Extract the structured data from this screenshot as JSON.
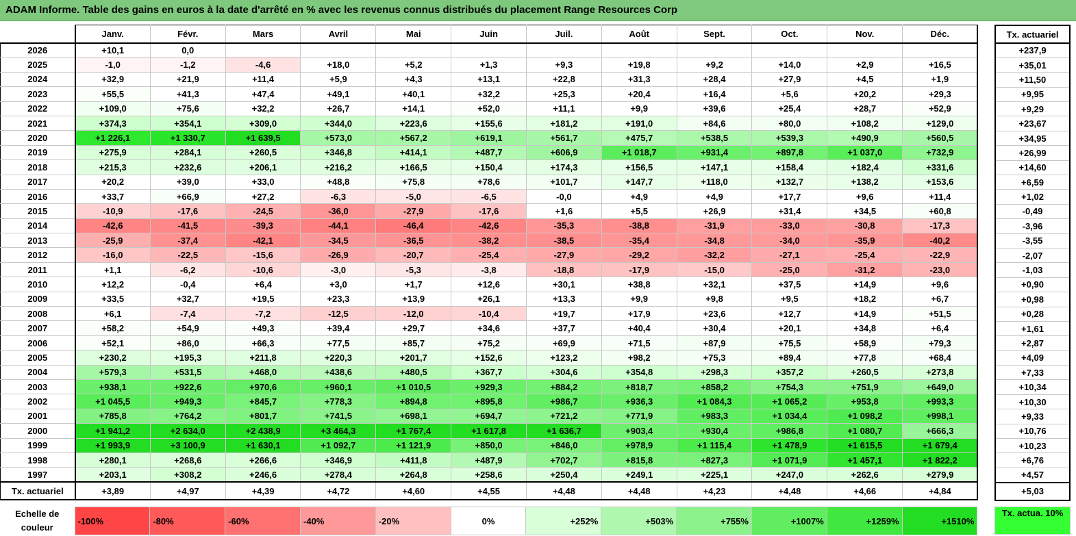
{
  "title": "ADAM Informe. Table des gains en euros à la date d'arrêté en % avec les revenus connus distribués du placement Range Resources Corp",
  "months": [
    "Janv.",
    "Févr.",
    "Mars",
    "Avril",
    "Mai",
    "Juin",
    "Juil.",
    "Août",
    "Sept.",
    "Oct.",
    "Nov.",
    "Déc."
  ],
  "side_header": "Tx. actuariel",
  "rows": [
    {
      "year": "2026",
      "vals": [
        "+10,1",
        "0,0",
        "",
        "",
        "",
        "",
        "",
        "",
        "",
        "",
        "",
        ""
      ],
      "bg": [
        "#ffffff",
        "#ffffff",
        "#ffffff",
        "#ffffff",
        "#ffffff",
        "#ffffff",
        "#ffffff",
        "#ffffff",
        "#ffffff",
        "#ffffff",
        "#ffffff",
        "#ffffff"
      ],
      "tx": "+237,9"
    },
    {
      "year": "2025",
      "vals": [
        "-1,0",
        "-1,2",
        "-4,6",
        "+18,0",
        "+5,2",
        "+1,3",
        "+9,3",
        "+19,8",
        "+9,2",
        "+14,0",
        "+2,9",
        "+16,5"
      ],
      "bg": [
        "#fff4f4",
        "#fff4f4",
        "#ffe2e2",
        "#ffffff",
        "#ffffff",
        "#ffffff",
        "#ffffff",
        "#ffffff",
        "#ffffff",
        "#ffffff",
        "#ffffff",
        "#ffffff"
      ],
      "tx": "+35,01"
    },
    {
      "year": "2024",
      "vals": [
        "+32,9",
        "+21,9",
        "+11,4",
        "+5,9",
        "+4,3",
        "+13,1",
        "+22,8",
        "+31,3",
        "+28,4",
        "+27,9",
        "+4,5",
        "+1,9"
      ],
      "bg": [
        "#ffffff",
        "#ffffff",
        "#ffffff",
        "#ffffff",
        "#ffffff",
        "#ffffff",
        "#ffffff",
        "#ffffff",
        "#ffffff",
        "#ffffff",
        "#ffffff",
        "#ffffff"
      ],
      "tx": "+11,50"
    },
    {
      "year": "2023",
      "vals": [
        "+55,5",
        "+41,3",
        "+47,4",
        "+49,1",
        "+40,1",
        "+32,2",
        "+25,3",
        "+20,4",
        "+16,4",
        "+5,6",
        "+20,2",
        "+29,3"
      ],
      "bg": [
        "#fafffa",
        "#ffffff",
        "#ffffff",
        "#ffffff",
        "#ffffff",
        "#ffffff",
        "#ffffff",
        "#ffffff",
        "#ffffff",
        "#ffffff",
        "#ffffff",
        "#ffffff"
      ],
      "tx": "+9,95"
    },
    {
      "year": "2022",
      "vals": [
        "+109,0",
        "+75,6",
        "+32,2",
        "+26,7",
        "+14,1",
        "+52,0",
        "+11,1",
        "+9,9",
        "+39,6",
        "+25,4",
        "+28,7",
        "+52,9"
      ],
      "bg": [
        "#f0fff0",
        "#f6fff6",
        "#ffffff",
        "#ffffff",
        "#ffffff",
        "#fafffa",
        "#ffffff",
        "#ffffff",
        "#ffffff",
        "#ffffff",
        "#ffffff",
        "#fafffa"
      ],
      "tx": "+9,29"
    },
    {
      "year": "2021",
      "vals": [
        "+374,3",
        "+354,1",
        "+309,0",
        "+344,0",
        "+223,6",
        "+155,6",
        "+181,2",
        "+191,0",
        "+84,6",
        "+80,0",
        "+108,2",
        "+129,0"
      ],
      "bg": [
        "#ccffcc",
        "#ceffce",
        "#d3ffd3",
        "#cfffcf",
        "#deffde",
        "#e6ffe6",
        "#e3ffe3",
        "#e2ffe2",
        "#f4fff4",
        "#f4fff4",
        "#f0fff0",
        "#eeffee"
      ],
      "tx": "+23,67"
    },
    {
      "year": "2020",
      "vals": [
        "+1 226,1",
        "+1 330,7",
        "+1 639,5",
        "+573,0",
        "+567,2",
        "+619,1",
        "+561,7",
        "+475,7",
        "+538,5",
        "+539,3",
        "+490,9",
        "+560,5"
      ],
      "bg": [
        "#2ee82e",
        "#2ae62a",
        "#22dd22",
        "#a6f7a6",
        "#a7f7a7",
        "#9ff59f",
        "#a8f7a8",
        "#b5f9b5",
        "#abf8ab",
        "#abf8ab",
        "#b2f9b2",
        "#a8f7a8"
      ],
      "tx": "+34,95"
    },
    {
      "year": "2019",
      "vals": [
        "+275,9",
        "+284,1",
        "+260,5",
        "+346,8",
        "+414,1",
        "+487,7",
        "+606,9",
        "+1 018,7",
        "+931,4",
        "+897,8",
        "+1 037,0",
        "+732,9"
      ],
      "bg": [
        "#d8ffd8",
        "#d7ffd7",
        "#daffda",
        "#cfffcf",
        "#c3fcc3",
        "#b3f9b3",
        "#a1f5a1",
        "#5ced5c",
        "#6bf06b",
        "#72f172",
        "#5aed5a",
        "#8ef48e"
      ],
      "tx": "+26,99"
    },
    {
      "year": "2018",
      "vals": [
        "+215,3",
        "+232,6",
        "+206,1",
        "+216,2",
        "+166,5",
        "+150,4",
        "+174,3",
        "+156,5",
        "+147,1",
        "+158,4",
        "+182,4",
        "+331,6"
      ],
      "bg": [
        "#dfffdf",
        "#ddffdd",
        "#e0ffe0",
        "#dfffdf",
        "#e5ffe5",
        "#e7ffe7",
        "#e4ffe4",
        "#e6ffe6",
        "#e7ffe7",
        "#e6ffe6",
        "#e3ffe3",
        "#d0ffd0"
      ],
      "tx": "+14,60"
    },
    {
      "year": "2017",
      "vals": [
        "+20,2",
        "+39,0",
        "+33,0",
        "+48,8",
        "+75,8",
        "+78,6",
        "+101,7",
        "+147,7",
        "+118,0",
        "+132,7",
        "+138,2",
        "+153,6"
      ],
      "bg": [
        "#ffffff",
        "#ffffff",
        "#ffffff",
        "#fafffa",
        "#f6fff6",
        "#f6fff6",
        "#f2fff2",
        "#e7ffe7",
        "#eeffee",
        "#ebffeb",
        "#eaffea",
        "#e7ffe7"
      ],
      "tx": "+6,59"
    },
    {
      "year": "2016",
      "vals": [
        "+33,7",
        "+66,9",
        "+27,2",
        "-6,3",
        "-5,0",
        "-6,5",
        "-0,0",
        "+4,9",
        "+4,9",
        "+17,7",
        "+9,6",
        "+11,4"
      ],
      "bg": [
        "#ffffff",
        "#f8fff8",
        "#ffffff",
        "#ffe4e4",
        "#ffe6e6",
        "#ffe4e4",
        "#ffffff",
        "#ffffff",
        "#ffffff",
        "#ffffff",
        "#ffffff",
        "#ffffff"
      ],
      "tx": "+1,02"
    },
    {
      "year": "2015",
      "vals": [
        "-10,9",
        "-17,6",
        "-24,5",
        "-36,0",
        "-27,9",
        "-17,6",
        "+1,6",
        "+5,5",
        "+26,9",
        "+31,4",
        "+34,5",
        "+60,8"
      ],
      "bg": [
        "#ffd2d2",
        "#ffc2c2",
        "#ffb1b1",
        "#ff9595",
        "#ffa9a9",
        "#ffc2c2",
        "#ffffff",
        "#ffffff",
        "#ffffff",
        "#ffffff",
        "#ffffff",
        "#f8fff8"
      ],
      "tx": "-0,49"
    },
    {
      "year": "2014",
      "vals": [
        "-42,6",
        "-41,5",
        "-39,3",
        "-44,1",
        "-46,4",
        "-42,6",
        "-35,3",
        "-38,8",
        "-31,9",
        "-33,0",
        "-30,8",
        "-17,3"
      ],
      "bg": [
        "#ff8484",
        "#ff8787",
        "#ff8c8c",
        "#ff8080",
        "#ff7a7a",
        "#ff8484",
        "#ff9797",
        "#ff8e8e",
        "#ff9f9f",
        "#ff9c9c",
        "#ffa1a1",
        "#ffc3c3"
      ],
      "tx": "-3,96"
    },
    {
      "year": "2013",
      "vals": [
        "-25,9",
        "-37,4",
        "-42,1",
        "-34,5",
        "-36,5",
        "-38,2",
        "-38,5",
        "-35,4",
        "-34,8",
        "-34,0",
        "-35,9",
        "-40,2"
      ],
      "bg": [
        "#ffaeae",
        "#ff9191",
        "#ff8585",
        "#ff9898",
        "#ff9393",
        "#ff8f8f",
        "#ff8e8e",
        "#ff9696",
        "#ff9898",
        "#ff9a9a",
        "#ff9595",
        "#ff8a8a"
      ],
      "tx": "-3,55"
    },
    {
      "year": "2012",
      "vals": [
        "-16,0",
        "-22,5",
        "-15,6",
        "-26,9",
        "-20,7",
        "-25,4",
        "-27,9",
        "-29,2",
        "-32,2",
        "-27,1",
        "-25,4",
        "-22,9"
      ],
      "bg": [
        "#ffc6c6",
        "#ffb6b6",
        "#ffc7c7",
        "#ffabab",
        "#ffbaba",
        "#ffafaf",
        "#ffa9a9",
        "#ffa6a6",
        "#ff9e9e",
        "#ffabab",
        "#ffafaf",
        "#ffb5b5"
      ],
      "tx": "-2,07"
    },
    {
      "year": "2011",
      "vals": [
        "+1,1",
        "-6,2",
        "-10,6",
        "-3,0",
        "-5,3",
        "-3,8",
        "-18,8",
        "-17,9",
        "-15,0",
        "-25,0",
        "-31,2",
        "-23,0"
      ],
      "bg": [
        "#ffffff",
        "#ffe4e4",
        "#ffd6d6",
        "#ffefef",
        "#ffe6e6",
        "#ffebeb",
        "#ffc0c0",
        "#ffc2c2",
        "#ffc9c9",
        "#ffb0b0",
        "#ffa0a0",
        "#ffb4b4"
      ],
      "tx": "-1,03"
    },
    {
      "year": "2010",
      "vals": [
        "+12,2",
        "-0,4",
        "+6,4",
        "+3,0",
        "+1,7",
        "+12,6",
        "+30,1",
        "+38,8",
        "+32,1",
        "+37,5",
        "+14,9",
        "+9,6"
      ],
      "bg": [
        "#ffffff",
        "#fffdfd",
        "#ffffff",
        "#ffffff",
        "#ffffff",
        "#ffffff",
        "#ffffff",
        "#ffffff",
        "#ffffff",
        "#ffffff",
        "#ffffff",
        "#ffffff"
      ],
      "tx": "+0,90"
    },
    {
      "year": "2009",
      "vals": [
        "+33,5",
        "+32,7",
        "+19,5",
        "+23,3",
        "+13,9",
        "+26,1",
        "+13,3",
        "+9,9",
        "+9,8",
        "+9,5",
        "+18,2",
        "+6,7"
      ],
      "bg": [
        "#ffffff",
        "#ffffff",
        "#ffffff",
        "#ffffff",
        "#ffffff",
        "#ffffff",
        "#ffffff",
        "#ffffff",
        "#ffffff",
        "#ffffff",
        "#ffffff",
        "#ffffff"
      ],
      "tx": "+0,98"
    },
    {
      "year": "2008",
      "vals": [
        "+6,1",
        "-7,4",
        "-7,2",
        "-12,5",
        "-12,0",
        "-10,4",
        "+19,7",
        "+17,9",
        "+23,6",
        "+12,7",
        "+14,9",
        "+51,5"
      ],
      "bg": [
        "#ffffff",
        "#ffe0e0",
        "#ffe1e1",
        "#ffd0d0",
        "#ffd1d1",
        "#ffd6d6",
        "#ffffff",
        "#ffffff",
        "#ffffff",
        "#ffffff",
        "#ffffff",
        "#fafffa"
      ],
      "tx": "+0,28"
    },
    {
      "year": "2007",
      "vals": [
        "+58,2",
        "+54,9",
        "+49,3",
        "+39,4",
        "+29,7",
        "+34,6",
        "+37,7",
        "+40,4",
        "+30,4",
        "+20,1",
        "+34,8",
        "+6,4"
      ],
      "bg": [
        "#fafffa",
        "#fafffa",
        "#fafffa",
        "#ffffff",
        "#ffffff",
        "#ffffff",
        "#ffffff",
        "#ffffff",
        "#ffffff",
        "#ffffff",
        "#ffffff",
        "#ffffff"
      ],
      "tx": "+1,61"
    },
    {
      "year": "2006",
      "vals": [
        "+52,1",
        "+86,0",
        "+66,3",
        "+77,5",
        "+85,7",
        "+75,2",
        "+69,9",
        "+71,5",
        "+87,9",
        "+75,5",
        "+58,9",
        "+79,3"
      ],
      "bg": [
        "#fafffa",
        "#f4fff4",
        "#f8fff8",
        "#f6fff6",
        "#f4fff4",
        "#f6fff6",
        "#f8fff8",
        "#f8fff8",
        "#f4fff4",
        "#f6fff6",
        "#fafffa",
        "#f6fff6"
      ],
      "tx": "+2,87"
    },
    {
      "year": "2005",
      "vals": [
        "+230,2",
        "+195,3",
        "+211,8",
        "+220,3",
        "+201,7",
        "+152,6",
        "+123,2",
        "+98,2",
        "+75,3",
        "+89,4",
        "+77,8",
        "+68,4"
      ],
      "bg": [
        "#ddffdd",
        "#e1ffe1",
        "#e0ffe0",
        "#dfffdf",
        "#e1ffe1",
        "#e7ffe7",
        "#eeffee",
        "#f2fff2",
        "#f6fff6",
        "#f4fff4",
        "#f6fff6",
        "#f8fff8"
      ],
      "tx": "+4,09"
    },
    {
      "year": "2004",
      "vals": [
        "+579,3",
        "+531,5",
        "+468,0",
        "+438,6",
        "+480,5",
        "+367,7",
        "+304,6",
        "+354,8",
        "+298,3",
        "+357,2",
        "+260,5",
        "+273,8"
      ],
      "bg": [
        "#a5f7a5",
        "#acf8ac",
        "#b6f9b6",
        "#baf9ba",
        "#b4f9b4",
        "#cbffcb",
        "#d4ffd4",
        "#ceffce",
        "#d5ffd5",
        "#ccffcc",
        "#daffda",
        "#d8ffd8"
      ],
      "tx": "+7,33"
    },
    {
      "year": "2003",
      "vals": [
        "+938,1",
        "+922,6",
        "+970,6",
        "+960,1",
        "+1 010,5",
        "+929,3",
        "+884,2",
        "+818,7",
        "+858,2",
        "+754,3",
        "+751,9",
        "+649,0"
      ],
      "bg": [
        "#6af06a",
        "#6cf06c",
        "#65ee65",
        "#67ef67",
        "#5fed5f",
        "#6bf06b",
        "#72f172",
        "#7bf27b",
        "#76f176",
        "#8af38a",
        "#8af38a",
        "#9bf59b"
      ],
      "tx": "+10,34"
    },
    {
      "year": "2002",
      "vals": [
        "+1 045,5",
        "+949,3",
        "+845,7",
        "+778,3",
        "+894,8",
        "+895,8",
        "+986,7",
        "+936,3",
        "+1 084,3",
        "+1 065,2",
        "+953,8",
        "+993,3"
      ],
      "bg": [
        "#59ed59",
        "#68ef68",
        "#78f278",
        "#84f384",
        "#70f170",
        "#70f170",
        "#62ee62",
        "#69ef69",
        "#52ec52",
        "#55ec55",
        "#67ef67",
        "#61ee61"
      ],
      "tx": "+10,30"
    },
    {
      "year": "2001",
      "vals": [
        "+785,8",
        "+764,2",
        "+801,7",
        "+741,5",
        "+698,1",
        "+694,7",
        "+721,2",
        "+771,9",
        "+983,3",
        "+1 034,4",
        "+1 098,2",
        "+998,1"
      ],
      "bg": [
        "#82f382",
        "#86f386",
        "#80f280",
        "#8af38a",
        "#92f492",
        "#93f493",
        "#8ef48e",
        "#85f385",
        "#62ee62",
        "#5aed5a",
        "#50eb50",
        "#60ee60"
      ],
      "tx": "+9,33"
    },
    {
      "year": "2000",
      "vals": [
        "+1 941,2",
        "+2 634,0",
        "+2 438,9",
        "+3 464,3",
        "+1 767,4",
        "+1 617,8",
        "+1 636,7",
        "+903,4",
        "+930,4",
        "+986,8",
        "+1 080,7",
        "+666,3"
      ],
      "bg": [
        "#22dd22",
        "#22dd22",
        "#22dd22",
        "#22dd22",
        "#22dd22",
        "#22dd22",
        "#22dd22",
        "#6ef06e",
        "#6bf06b",
        "#62ee62",
        "#52ec52",
        "#99f599"
      ],
      "tx": "+10,76"
    },
    {
      "year": "1999",
      "vals": [
        "+1 993,9",
        "+3 100,9",
        "+1 630,1",
        "+1 092,7",
        "+1 121,9",
        "+850,0",
        "+846,0",
        "+978,9",
        "+1 115,4",
        "+1 478,9",
        "+1 615,5",
        "+1 679,4"
      ],
      "bg": [
        "#22dd22",
        "#22dd22",
        "#22dd22",
        "#50eb50",
        "#4ceb4c",
        "#77f277",
        "#78f278",
        "#63ee63",
        "#4ceb4c",
        "#2ee52e",
        "#22dd22",
        "#22dd22"
      ],
      "tx": "+10,23"
    },
    {
      "year": "1998",
      "vals": [
        "+280,1",
        "+268,6",
        "+266,6",
        "+346,9",
        "+411,8",
        "+487,9",
        "+702,7",
        "+815,8",
        "+827,3",
        "+1 071,9",
        "+1 457,1",
        "+1 822,2"
      ],
      "bg": [
        "#d7ffd7",
        "#d9ffd9",
        "#d9ffd9",
        "#cfffcf",
        "#c3fcc3",
        "#b3f9b3",
        "#91f491",
        "#7cf27c",
        "#7af27a",
        "#54ec54",
        "#30e430",
        "#22dd22"
      ],
      "tx": "+6,76"
    },
    {
      "year": "1997",
      "vals": [
        "+203,1",
        "+308,2",
        "+246,6",
        "+278,4",
        "+264,8",
        "+258,6",
        "+250,4",
        "+249,1",
        "+225,1",
        "+247,0",
        "+262,6",
        "+279,9"
      ],
      "bg": [
        "#e0ffe0",
        "#d3ffd3",
        "#dbffdb",
        "#d7ffd7",
        "#d9ffd9",
        "#daffda",
        "#dbffdb",
        "#dbffdb",
        "#deffde",
        "#dbffdb",
        "#d9ffd9",
        "#d7ffd7"
      ],
      "tx": "+4,57"
    }
  ],
  "totals": {
    "label": "Tx. actuariel",
    "vals": [
      "+3,89",
      "+4,97",
      "+4,39",
      "+4,72",
      "+4,60",
      "+4,55",
      "+4,48",
      "+4,48",
      "+4,23",
      "+4,48",
      "+4,66",
      "+4,84"
    ],
    "tx": "+5,03"
  },
  "scale": {
    "label": "Echelle de couleur",
    "items": [
      {
        "text": "-100%",
        "bg": "#ff4545",
        "align": "l"
      },
      {
        "text": "-80%",
        "bg": "#ff5a5a",
        "align": "l"
      },
      {
        "text": "-60%",
        "bg": "#ff7070",
        "align": "l"
      },
      {
        "text": "-40%",
        "bg": "#ff9898",
        "align": "l"
      },
      {
        "text": "-20%",
        "bg": "#ffc0c0",
        "align": "l"
      },
      {
        "text": "0%",
        "bg": "#ffffff",
        "align": "c"
      },
      {
        "text": "+252%",
        "bg": "#d8ffd8",
        "align": "r"
      },
      {
        "text": "+503%",
        "bg": "#b0f8b0",
        "align": "r"
      },
      {
        "text": "+755%",
        "bg": "#8cf38c",
        "align": "r"
      },
      {
        "text": "+1007%",
        "bg": "#60ee60",
        "align": "r"
      },
      {
        "text": "+1259%",
        "bg": "#40e840",
        "align": "r"
      },
      {
        "text": "+1510%",
        "bg": "#22dd22",
        "align": "r"
      }
    ],
    "side_label": "Tx. actua. 10%",
    "side_bg": "#33ff33"
  }
}
